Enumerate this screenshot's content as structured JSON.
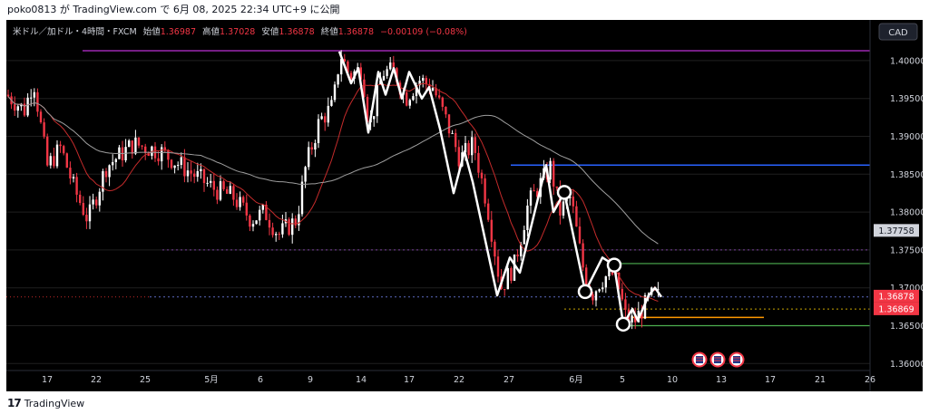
{
  "header": {
    "caption": "poko0813 が TradingView.com で 6月 08, 2025 22:34 UTC+9 に公開"
  },
  "legend": {
    "symbol": "米ドル／加ドル・4時間・FXCM",
    "open_label": "始値",
    "open": "1.36987",
    "high_label": "高値",
    "high": "1.37028",
    "low_label": "安値",
    "low": "1.36878",
    "close_label": "終値",
    "close": "1.36878",
    "change": "−0.00109 (−0.08%)"
  },
  "currency_button": "CAD",
  "footer": {
    "brand": "TradingView"
  },
  "colors": {
    "background": "#000000",
    "bull": "#ffffff",
    "bear": "#f23645",
    "ma_fast": "#c42b2b",
    "ma_slow": "#9e9e9e",
    "purple_line": "#9c27b0",
    "blue_line": "#2962ff",
    "green_line": "#4caf50",
    "orange_line": "#ff9800",
    "price_red": "#f23645"
  },
  "chart_data": {
    "type": "candlestick",
    "symbol": "USDCAD",
    "timeframe": "4H",
    "y_ticks": [
      "1.40000",
      "1.39500",
      "1.39000",
      "1.38500",
      "1.38000",
      "1.37500",
      "1.37000",
      "1.36500",
      "1.36000"
    ],
    "ylim": [
      1.3592,
      1.4025
    ],
    "x_ticks": [
      "17",
      "22",
      "25",
      "5月",
      "6",
      "9",
      "14",
      "17",
      "22",
      "27",
      "6月",
      "5",
      "10",
      "13",
      "17",
      "21",
      "26"
    ],
    "price_labels": [
      {
        "value": "1.37758",
        "style": "gray"
      },
      {
        "value": "1.36878",
        "style": "red"
      },
      {
        "value": "1.36869",
        "style": "red"
      }
    ],
    "horizontal_lines": [
      {
        "color": "purple",
        "price": 1.4013
      },
      {
        "color": "blue",
        "price": 1.3862
      },
      {
        "color": "green",
        "price": 1.3732
      },
      {
        "color": "green",
        "price": 1.365
      },
      {
        "color": "orange",
        "price": 1.3661
      }
    ],
    "zigzag_pattern": [
      {
        "t": 0.0,
        "p": 1.3998
      },
      {
        "t": 0.05,
        "p": 1.397
      },
      {
        "t": 0.11,
        "p": 1.3958
      },
      {
        "t": 0.18,
        "p": 1.3882
      },
      {
        "t": 0.27,
        "p": 1.3842
      },
      {
        "t": 0.36,
        "p": 1.3832
      },
      {
        "t": 0.45,
        "p": 1.388
      },
      {
        "t": 0.5,
        "p": 1.3905
      },
      {
        "t": 0.56,
        "p": 1.3845
      },
      {
        "t": 0.61,
        "p": 1.3822
      },
      {
        "t": 0.65,
        "p": 1.3783
      },
      {
        "t": 0.7,
        "p": 1.3838
      },
      {
        "t": 0.75,
        "p": 1.3823
      },
      {
        "t": 0.8,
        "p": 1.3895
      },
      {
        "t": 0.85,
        "p": 1.4012
      }
    ],
    "events": [
      "us-flag",
      "us-flag",
      "us-flag"
    ]
  }
}
